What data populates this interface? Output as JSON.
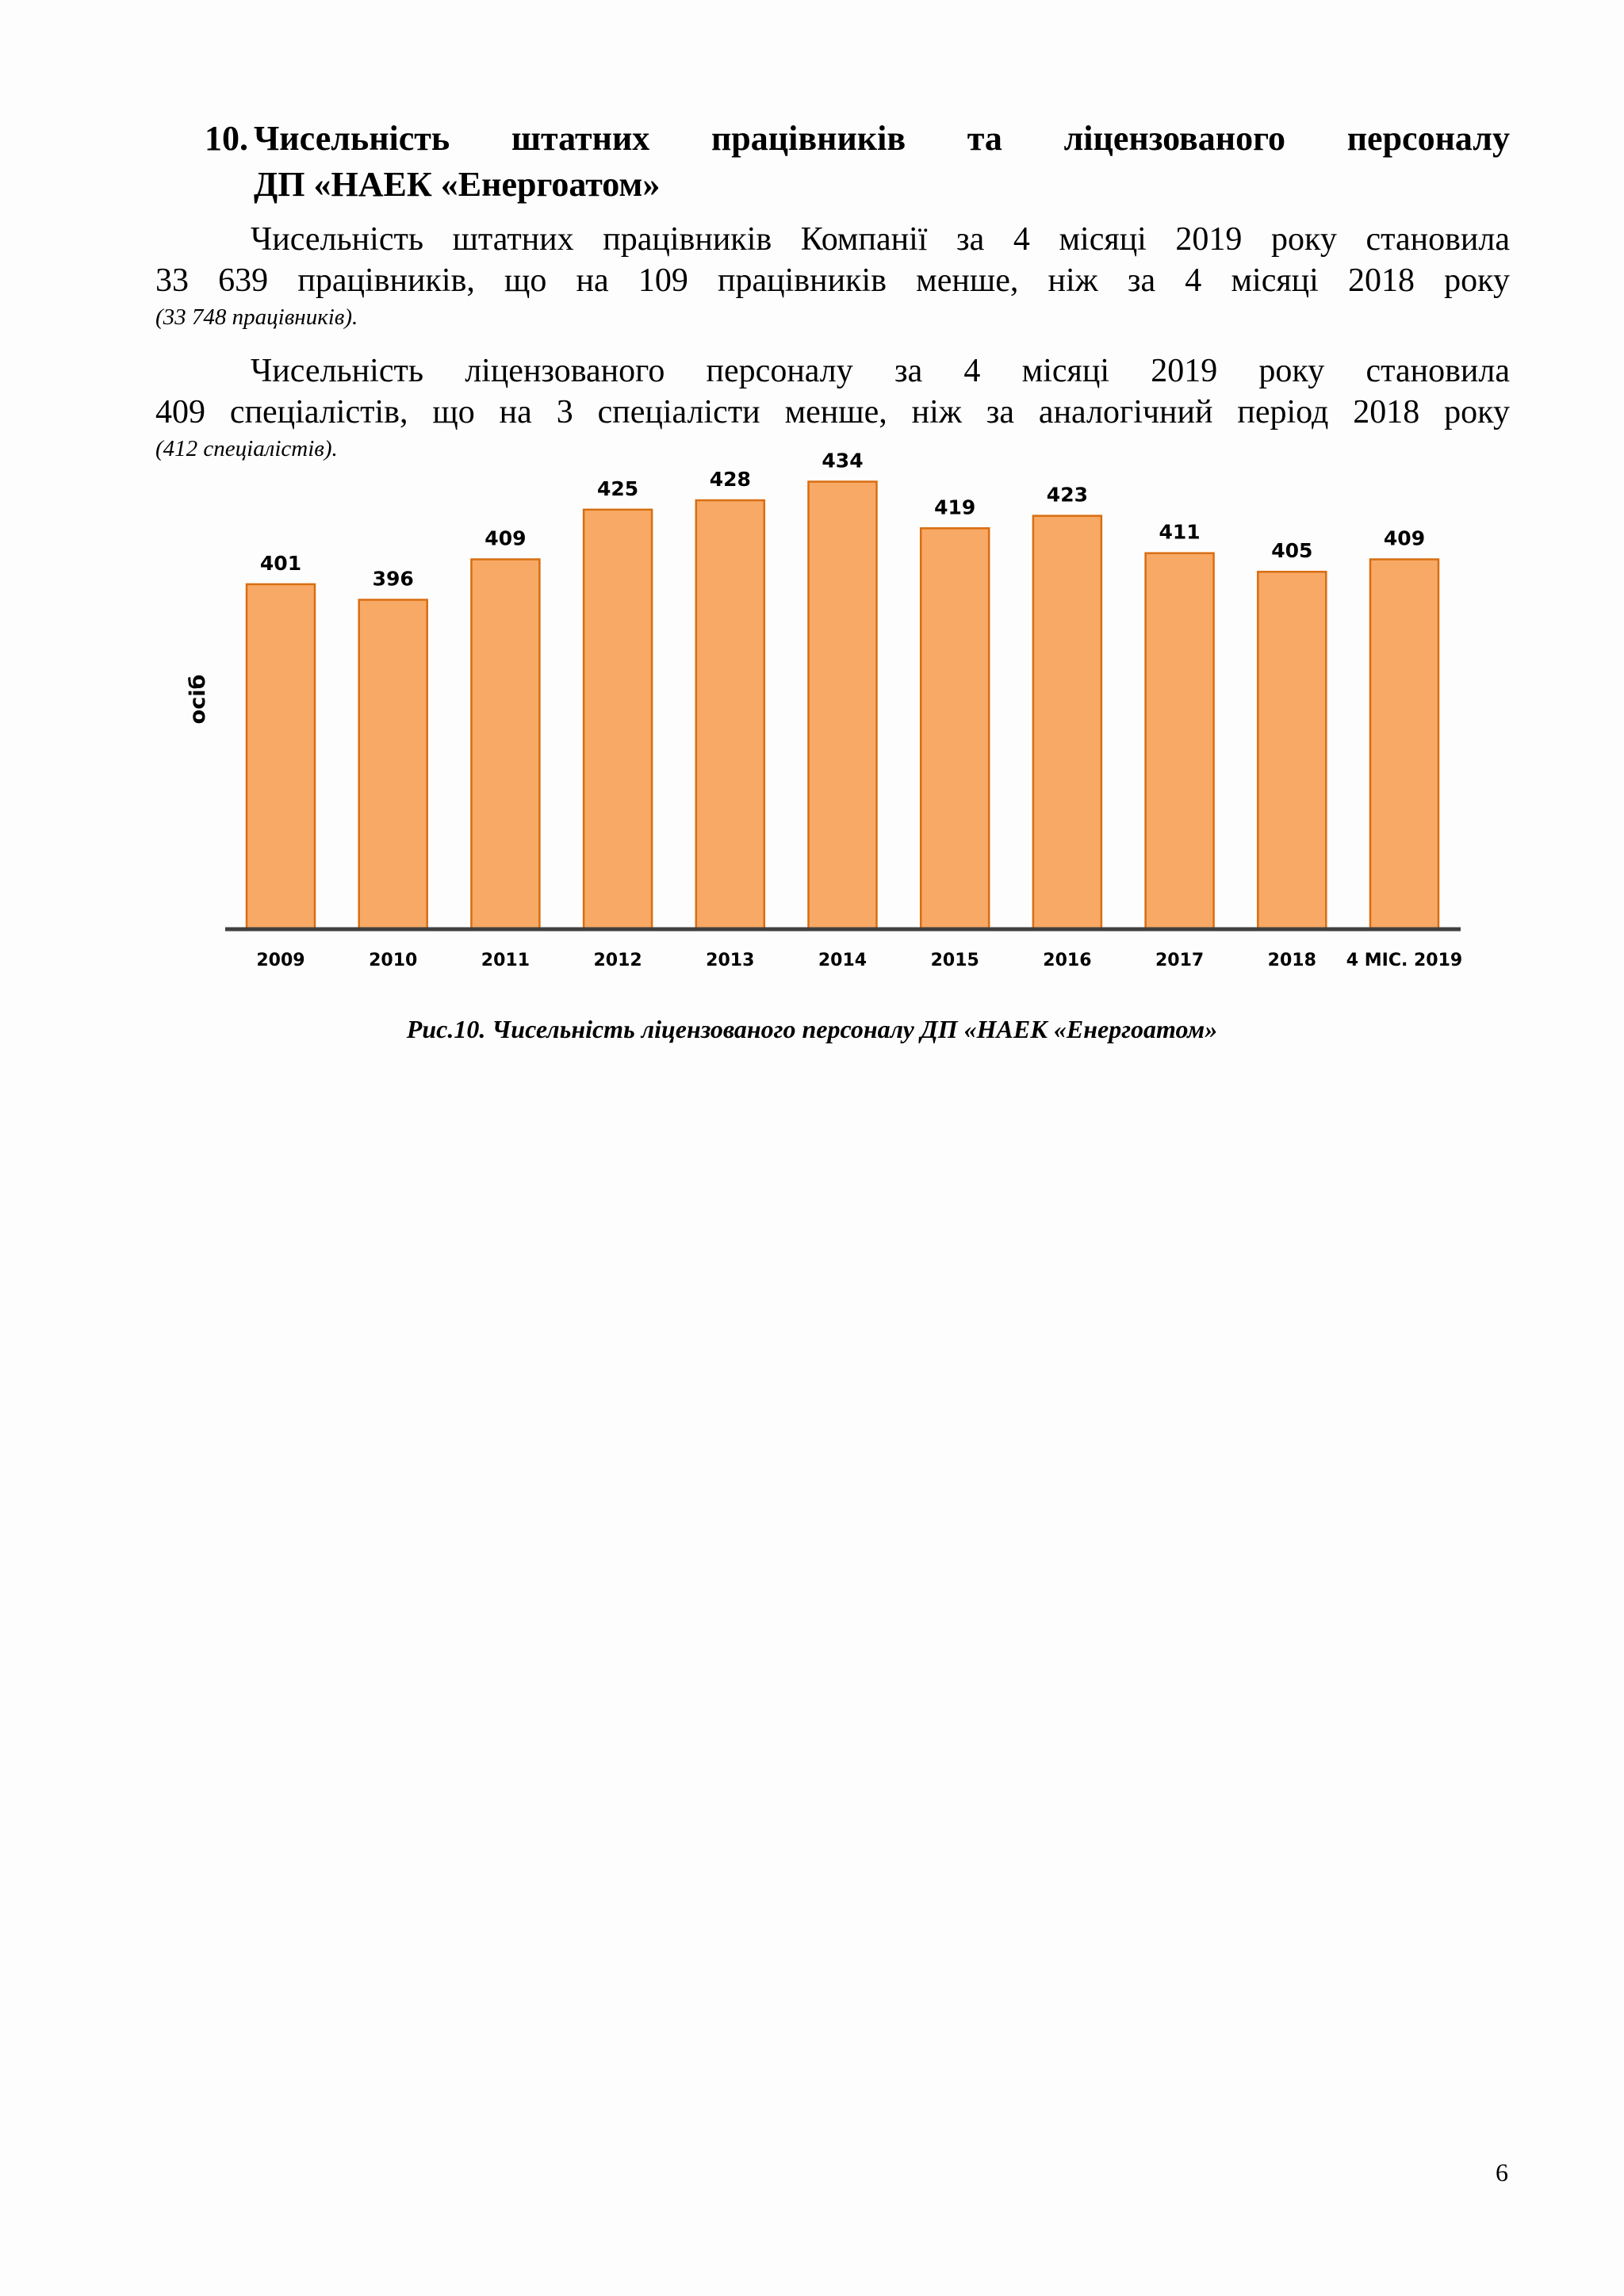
{
  "heading": {
    "number": "10.",
    "title_line1": "Чисельність штатних працівників та ліцензованого персоналу",
    "title_line2": "ДП «НАЕК «Енергоатом»"
  },
  "paragraphs": [
    {
      "line1": "Чисельність штатних працівників Компанії за 4 місяці 2019 року становила",
      "line2": "33 639 працівників, що на 109 працівників менше, ніж за 4 місяці 2018 року",
      "note": "(33 748 працівників)."
    },
    {
      "line1": "Чисельність ліцензованого персоналу за 4 місяці 2019 року становила",
      "line2": "409 спеціалістів, що на 3 спеціалісти менше, ніж за аналогічний період 2018 року",
      "note": "(412 спеціалістів)."
    }
  ],
  "chart_data": {
    "type": "bar",
    "categories": [
      "2009",
      "2010",
      "2011",
      "2012",
      "2013",
      "2014",
      "2015",
      "2016",
      "2017",
      "2018",
      "4 МІС. 2019"
    ],
    "values": [
      401,
      396,
      409,
      425,
      428,
      434,
      419,
      423,
      411,
      405,
      409
    ],
    "ylabel": "осіб",
    "ylim": [
      290,
      440
    ],
    "grid": false,
    "legend": "none",
    "data_labels": true,
    "colors": {
      "bar_fill": "#f8a965",
      "bar_stroke": "#d86e12",
      "axis": "#404040",
      "text": "#000000"
    }
  },
  "caption": "Рис.10. Чисельність ліцензованого персоналу ДП «НАЕК «Енергоатом»",
  "page_number": "6"
}
